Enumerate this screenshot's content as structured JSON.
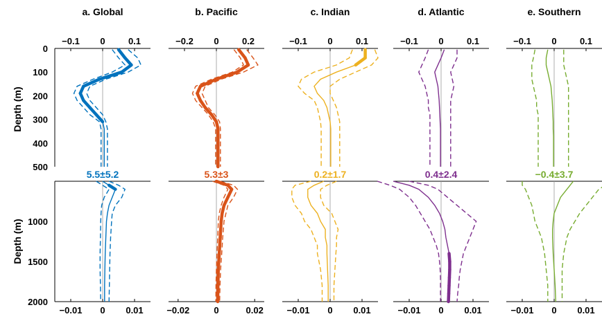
{
  "chart_data": {
    "type": "line",
    "ylabel": "Depth (m)",
    "upper_depth": {
      "range": [
        0,
        500
      ],
      "ticks": [
        0,
        100,
        200,
        300,
        400,
        500
      ]
    },
    "lower_depth": {
      "range": [
        500,
        2000
      ],
      "ticks": [
        1000,
        1500,
        2000
      ]
    },
    "panels": [
      {
        "title": "a. Global",
        "color": "#0072BD",
        "trend_text": "5.5±5.2",
        "upper_xlim": [
          -0.15,
          0.15
        ],
        "upper_ticks": [
          -0.1,
          0,
          0.1
        ],
        "upper_tick_labels": [
          "−0.1",
          "0",
          "0.1"
        ],
        "lower_xlim": [
          -0.015,
          0.015
        ],
        "lower_ticks": [
          -0.01,
          0,
          0.01
        ],
        "lower_tick_labels": [
          "−0.01",
          "0",
          "0.01"
        ],
        "upper": {
          "depth": [
            5,
            40,
            70,
            100,
            130,
            160,
            190,
            220,
            250,
            280,
            310,
            340,
            370,
            400,
            450,
            500
          ],
          "mean": [
            0.05,
            0.07,
            0.09,
            0.06,
            -0.01,
            -0.06,
            -0.07,
            -0.06,
            -0.04,
            -0.02,
            0.0,
            0.005,
            0.005,
            0.005,
            0.005,
            0.005
          ],
          "lower": [
            0.03,
            0.05,
            0.07,
            0.03,
            -0.03,
            -0.08,
            -0.09,
            -0.08,
            -0.06,
            -0.04,
            -0.01,
            -0.005,
            -0.005,
            -0.005,
            -0.005,
            -0.005
          ],
          "upper": [
            0.08,
            0.11,
            0.12,
            0.08,
            0.01,
            -0.04,
            -0.05,
            -0.04,
            -0.02,
            0.0,
            0.01,
            0.015,
            0.015,
            0.015,
            0.015,
            0.015
          ],
          "significant": [
            true,
            true,
            true,
            true,
            true,
            true,
            true,
            true,
            true,
            true,
            true,
            false,
            false,
            false,
            false,
            false
          ]
        },
        "lower": {
          "depth": [
            500,
            550,
            600,
            700,
            800,
            900,
            1000,
            1200,
            1400,
            1600,
            1800,
            2000
          ],
          "mean": [
            0.0,
            0.002,
            0.004,
            0.003,
            0.002,
            0.0015,
            0.0012,
            0.001,
            0.0008,
            0.0007,
            0.0006,
            0.0006
          ],
          "lower": [
            -0.002,
            0.0,
            0.002,
            0.0005,
            -0.0003,
            -0.0005,
            -0.0006,
            -0.0007,
            -0.0008,
            -0.0008,
            -0.0007,
            -0.0006
          ],
          "upper": [
            0.002,
            0.005,
            0.007,
            0.006,
            0.004,
            0.003,
            0.0028,
            0.0025,
            0.0023,
            0.0022,
            0.0021,
            0.002
          ],
          "significant": [
            false,
            true,
            true,
            false,
            false,
            false,
            false,
            false,
            false,
            false,
            false,
            false
          ]
        }
      },
      {
        "title": "b. Pacific",
        "color": "#D95319",
        "trend_text": "5.3±3",
        "upper_xlim": [
          -0.3,
          0.3
        ],
        "upper_ticks": [
          -0.2,
          0,
          0.2
        ],
        "upper_tick_labels": [
          "−0.2",
          "0",
          "0.2"
        ],
        "lower_xlim": [
          -0.025,
          0.025
        ],
        "lower_ticks": [
          -0.02,
          0,
          0.02
        ],
        "lower_tick_labels": [
          "−0.02",
          "0",
          "0.02"
        ],
        "upper": {
          "depth": [
            5,
            40,
            70,
            100,
            130,
            160,
            190,
            220,
            250,
            280,
            310,
            340,
            370,
            400,
            450,
            500
          ],
          "mean": [
            0.14,
            0.18,
            0.2,
            0.13,
            0.0,
            -0.1,
            -0.12,
            -0.1,
            -0.07,
            -0.03,
            0.0,
            0.01,
            0.01,
            0.01,
            0.01,
            0.01
          ],
          "lower": [
            0.11,
            0.15,
            0.17,
            0.1,
            -0.03,
            -0.13,
            -0.15,
            -0.13,
            -0.09,
            -0.05,
            -0.02,
            -0.005,
            -0.005,
            -0.005,
            -0.005,
            -0.005
          ],
          "upper": [
            0.19,
            0.23,
            0.26,
            0.17,
            0.03,
            -0.07,
            -0.09,
            -0.07,
            -0.05,
            -0.01,
            0.02,
            0.025,
            0.025,
            0.025,
            0.025,
            0.025
          ],
          "significant": [
            true,
            true,
            true,
            true,
            true,
            true,
            true,
            true,
            true,
            true,
            true,
            true,
            true,
            true,
            true,
            true
          ]
        },
        "lower": {
          "depth": [
            500,
            550,
            600,
            700,
            800,
            900,
            1000,
            1200,
            1400,
            1600,
            1800,
            2000
          ],
          "mean": [
            0.0,
            0.006,
            0.008,
            0.006,
            0.004,
            0.003,
            0.0025,
            0.002,
            0.0015,
            0.001,
            0.0008,
            0.0007
          ],
          "lower": [
            -0.002,
            0.004,
            0.006,
            0.004,
            0.0025,
            0.0015,
            0.001,
            0.0007,
            0.0003,
            0.0,
            -0.0002,
            -0.0003
          ],
          "upper": [
            0.002,
            0.009,
            0.011,
            0.009,
            0.006,
            0.005,
            0.004,
            0.0033,
            0.0028,
            0.0022,
            0.0019,
            0.0017
          ],
          "significant": [
            true,
            true,
            true,
            true,
            true,
            true,
            true,
            true,
            true,
            true,
            true,
            true
          ]
        }
      },
      {
        "title": "c. Indian",
        "color": "#EDB120",
        "trend_text": "0.2±1.7",
        "upper_xlim": [
          -0.15,
          0.15
        ],
        "upper_ticks": [
          -0.1,
          0,
          0.1
        ],
        "upper_tick_labels": [
          "−0.1",
          "0",
          "0.1"
        ],
        "lower_xlim": [
          -0.015,
          0.015
        ],
        "lower_ticks": [
          -0.01,
          0,
          0.01
        ],
        "lower_tick_labels": [
          "−0.01",
          "0",
          "0.01"
        ],
        "upper": {
          "depth": [
            5,
            40,
            70,
            100,
            130,
            160,
            190,
            220,
            250,
            280,
            310,
            340,
            370,
            400,
            450,
            500
          ],
          "mean": [
            0.11,
            0.11,
            0.08,
            0.02,
            -0.03,
            -0.05,
            -0.04,
            -0.02,
            -0.01,
            -0.005,
            0.0,
            0.002,
            0.002,
            0.002,
            0.002,
            0.002
          ],
          "lower": [
            0.07,
            0.06,
            0.02,
            -0.05,
            -0.09,
            -0.1,
            -0.08,
            -0.05,
            -0.04,
            -0.035,
            -0.03,
            -0.028,
            -0.028,
            -0.028,
            -0.028,
            -0.028
          ],
          "upper": [
            0.14,
            0.15,
            0.13,
            0.08,
            0.03,
            0.0,
            0.0,
            0.01,
            0.02,
            0.025,
            0.03,
            0.03,
            0.03,
            0.03,
            0.03,
            0.03
          ],
          "significant": [
            true,
            true,
            true,
            false,
            false,
            false,
            false,
            false,
            false,
            false,
            false,
            false,
            false,
            false,
            false,
            false
          ]
        },
        "lower": {
          "depth": [
            500,
            550,
            600,
            700,
            800,
            900,
            1000,
            1100,
            1200,
            1300,
            1400,
            1600,
            1800,
            2000
          ],
          "mean": [
            -0.002,
            -0.005,
            -0.007,
            -0.007,
            -0.006,
            -0.004,
            -0.003,
            -0.0015,
            -0.0015,
            -0.001,
            -0.001,
            -0.0008,
            -0.0006,
            -0.0006
          ],
          "lower": [
            -0.006,
            -0.011,
            -0.012,
            -0.012,
            -0.011,
            -0.009,
            -0.008,
            -0.006,
            -0.005,
            -0.004,
            -0.004,
            -0.003,
            -0.0025,
            -0.0025
          ],
          "upper": [
            0.002,
            -0.001,
            -0.003,
            -0.003,
            -0.002,
            0.0005,
            0.0015,
            0.0025,
            0.002,
            0.002,
            0.0018,
            0.0015,
            0.0012,
            0.0012
          ],
          "significant": [
            false,
            false,
            false,
            false,
            false,
            false,
            false,
            false,
            false,
            false,
            false,
            false,
            false,
            false
          ]
        }
      },
      {
        "title": "d. Atlantic",
        "color": "#7E2F8E",
        "trend_text": "0.4±2.4",
        "upper_xlim": [
          -0.15,
          0.15
        ],
        "upper_ticks": [
          -0.1,
          0,
          0.1
        ],
        "upper_tick_labels": [
          "−0.1",
          "0",
          "0.1"
        ],
        "lower_xlim": [
          -0.015,
          0.015
        ],
        "lower_ticks": [
          -0.01,
          0,
          0.01
        ],
        "lower_tick_labels": [
          "−0.01",
          "0",
          "0.01"
        ],
        "upper": {
          "depth": [
            5,
            40,
            70,
            100,
            130,
            160,
            190,
            220,
            250,
            280,
            310,
            340,
            370,
            400,
            450,
            500
          ],
          "mean": [
            0.01,
            0.0,
            -0.01,
            -0.02,
            -0.015,
            -0.01,
            -0.008,
            -0.006,
            -0.005,
            -0.004,
            -0.003,
            -0.002,
            -0.002,
            -0.002,
            -0.002,
            -0.002
          ],
          "lower": [
            -0.04,
            -0.05,
            -0.06,
            -0.07,
            -0.06,
            -0.05,
            -0.045,
            -0.04,
            -0.04,
            -0.035,
            -0.035,
            -0.035,
            -0.035,
            -0.035,
            -0.035,
            -0.035
          ],
          "upper": [
            0.05,
            0.05,
            0.04,
            0.03,
            0.035,
            0.04,
            0.035,
            0.03,
            0.03,
            0.03,
            0.03,
            0.03,
            0.03,
            0.03,
            0.03,
            0.03
          ],
          "significant": [
            false,
            false,
            false,
            false,
            false,
            false,
            false,
            false,
            false,
            false,
            false,
            false,
            false,
            false,
            false,
            false
          ]
        },
        "lower": {
          "depth": [
            500,
            550,
            600,
            700,
            800,
            900,
            1000,
            1100,
            1200,
            1300,
            1400,
            1500,
            1600,
            1700,
            1800,
            1900,
            2000
          ],
          "mean": [
            -0.015,
            -0.01,
            -0.007,
            -0.004,
            -0.002,
            -0.0005,
            0.0005,
            0.0012,
            0.0015,
            0.002,
            0.0025,
            0.0027,
            0.0027,
            0.0026,
            0.0025,
            0.0024,
            0.0023
          ],
          "lower": [
            -0.02,
            -0.016,
            -0.013,
            -0.01,
            -0.008,
            -0.0065,
            -0.005,
            -0.0035,
            -0.0025,
            -0.0015,
            -0.0008,
            -0.0005,
            -0.0003,
            -0.0002,
            -0.0002,
            -0.0002,
            -0.0002
          ],
          "upper": [
            -0.01,
            -0.004,
            -0.001,
            0.002,
            0.005,
            0.008,
            0.011,
            0.01,
            0.009,
            0.008,
            0.007,
            0.0065,
            0.006,
            0.0057,
            0.0055,
            0.0052,
            0.005
          ],
          "significant": [
            false,
            false,
            false,
            false,
            false,
            false,
            false,
            false,
            false,
            false,
            true,
            true,
            true,
            true,
            true,
            true,
            true
          ]
        }
      },
      {
        "title": "e. Southern",
        "color": "#77AC30",
        "trend_text": "−0.4±3.7",
        "upper_xlim": [
          -0.15,
          0.15
        ],
        "upper_ticks": [
          -0.1,
          0,
          0.1
        ],
        "upper_tick_labels": [
          "−0.1",
          "0",
          "0.1"
        ],
        "lower_xlim": [
          -0.015,
          0.015
        ],
        "lower_ticks": [
          -0.01,
          0,
          0.01
        ],
        "lower_tick_labels": [
          "−0.01",
          "0",
          "0.01"
        ],
        "upper": {
          "depth": [
            5,
            40,
            70,
            100,
            130,
            160,
            190,
            220,
            250,
            280,
            310,
            340,
            370,
            400,
            450,
            500
          ],
          "mean": [
            -0.02,
            -0.025,
            -0.025,
            -0.02,
            -0.015,
            -0.01,
            -0.008,
            -0.006,
            -0.005,
            -0.004,
            -0.003,
            -0.003,
            -0.002,
            -0.002,
            -0.002,
            -0.002
          ],
          "lower": [
            -0.06,
            -0.065,
            -0.07,
            -0.07,
            -0.07,
            -0.065,
            -0.06,
            -0.055,
            -0.055,
            -0.05,
            -0.05,
            -0.05,
            -0.05,
            -0.05,
            -0.05,
            -0.05
          ],
          "upper": [
            0.03,
            0.03,
            0.03,
            0.035,
            0.04,
            0.045,
            0.045,
            0.045,
            0.045,
            0.045,
            0.045,
            0.045,
            0.045,
            0.045,
            0.045,
            0.045
          ],
          "significant": [
            false,
            false,
            false,
            false,
            false,
            false,
            false,
            false,
            false,
            false,
            false,
            false,
            false,
            false,
            false,
            false
          ]
        },
        "lower": {
          "depth": [
            500,
            550,
            600,
            700,
            800,
            900,
            1000,
            1100,
            1200,
            1400,
            1600,
            1800,
            2000
          ],
          "mean": [
            0.006,
            0.005,
            0.004,
            0.002,
            0.001,
            0.0,
            -0.0003,
            -0.0005,
            -0.0005,
            -0.0003,
            0.0,
            0.0003,
            0.0005
          ],
          "lower": [
            -0.01,
            -0.01,
            -0.009,
            -0.008,
            -0.007,
            -0.0065,
            -0.006,
            -0.005,
            -0.004,
            -0.003,
            -0.0025,
            -0.002,
            -0.002
          ],
          "upper": [
            0.018,
            0.016,
            0.014,
            0.012,
            0.01,
            0.008,
            0.0065,
            0.005,
            0.004,
            0.003,
            0.0025,
            0.0025,
            0.0025
          ],
          "significant": [
            false,
            false,
            false,
            false,
            false,
            false,
            false,
            false,
            false,
            false,
            false,
            false,
            false
          ]
        }
      }
    ]
  }
}
